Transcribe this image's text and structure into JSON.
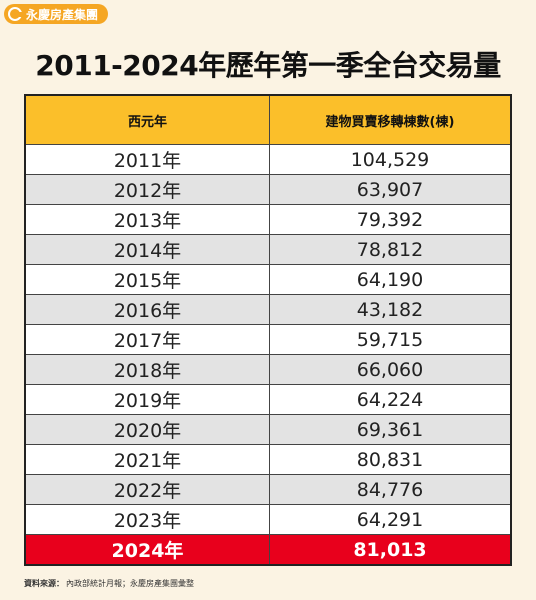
{
  "brand": {
    "name": "永慶房產集團"
  },
  "title": "2011-2024年歷年第一季全台交易量",
  "table": {
    "headers": [
      "西元年",
      "建物買賣移轉棟數(棟)"
    ],
    "rows": [
      {
        "year": "2011年",
        "value": "104,529"
      },
      {
        "year": "2012年",
        "value": "63,907"
      },
      {
        "year": "2013年",
        "value": "79,392"
      },
      {
        "year": "2014年",
        "value": "78,812"
      },
      {
        "year": "2015年",
        "value": "64,190"
      },
      {
        "year": "2016年",
        "value": "43,182"
      },
      {
        "year": "2017年",
        "value": "59,715"
      },
      {
        "year": "2018年",
        "value": "66,060"
      },
      {
        "year": "2019年",
        "value": "64,224"
      },
      {
        "year": "2020年",
        "value": "69,361"
      },
      {
        "year": "2021年",
        "value": "80,831"
      },
      {
        "year": "2022年",
        "value": "84,776"
      },
      {
        "year": "2023年",
        "value": "64,291"
      },
      {
        "year": "2024年",
        "value": "81,013"
      }
    ],
    "highlight_color": "#e8001c",
    "header_color": "#fbbf2a"
  },
  "source": {
    "label": "資料來源：",
    "text": "內政部統計月報；永慶房產集團彙整"
  }
}
